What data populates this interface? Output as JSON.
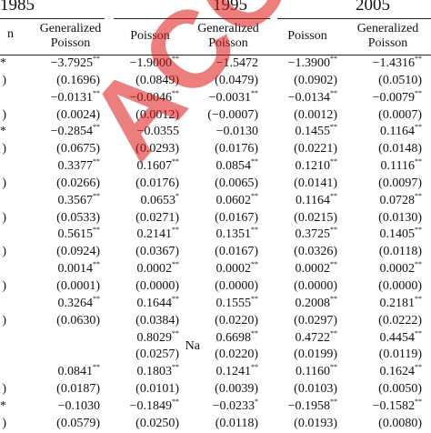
{
  "years": [
    "1985",
    "1995",
    "2005"
  ],
  "column_headers": [
    {
      "line1": "n",
      "line2": ""
    },
    {
      "line1": "Generalized",
      "line2": "Poisson"
    },
    {
      "line1": "Poisson",
      "line2": ""
    },
    {
      "line1": "Generalized",
      "line2": "Poisson"
    },
    {
      "line1": "Poisson",
      "line2": ""
    },
    {
      "line1": "Generalized",
      "line2": "Poisson"
    }
  ],
  "rows": [
    {
      "c0": "**",
      "c1": "−3.7925",
      "c1s": "**",
      "c2": "−1.9000",
      "c2s": "**",
      "c3": "−1.5472",
      "c3s": "",
      "c4": "−1.3900",
      "c4s": "**",
      "c5": "−1.4316",
      "c5s": "**"
    },
    {
      "c0": ")",
      "c1": "(0.1696)",
      "c1s": "",
      "c2": "(0.0849)",
      "c2s": "",
      "c3": "(0.0479)",
      "c3s": "",
      "c4": "(0.0902)",
      "c4s": "",
      "c5": "(0.0510)",
      "c5s": ""
    },
    {
      "c0": "",
      "c1": "−0.0131",
      "c1s": "**",
      "c2": "−0.0046",
      "c2s": "**",
      "c3": "−0.0031",
      "c3s": "**",
      "c4": "−0.0134",
      "c4s": "**",
      "c5": "−0.0079",
      "c5s": "**"
    },
    {
      "c0": ")",
      "c1": "(0.0024)",
      "c1s": "",
      "c2": "(0.0012)",
      "c2s": "",
      "c3": "(−0.0007)",
      "c3s": "",
      "c4": "(0.0012)",
      "c4s": "",
      "c5": "(0.0007)",
      "c5s": ""
    },
    {
      "c0": "*",
      "c1": "−0.2854",
      "c1s": "**",
      "c2": "−0.0355",
      "c2s": "",
      "c3": "−0.0130",
      "c3s": "",
      "c4": "0.1455",
      "c4s": "**",
      "c5": "0.1164",
      "c5s": "**"
    },
    {
      "c0": ")",
      "c1": "(0.0675)",
      "c1s": "",
      "c2": "(0.0293)",
      "c2s": "",
      "c3": "(0.0176)",
      "c3s": "",
      "c4": "(0.0221)",
      "c4s": "",
      "c5": "(0.0148)",
      "c5s": ""
    },
    {
      "c0": "",
      "c1": "0.3377",
      "c1s": "**",
      "c2": "0.1607",
      "c2s": "**",
      "c3": "0.0854",
      "c3s": "**",
      "c4": "0.1210",
      "c4s": "**",
      "c5": "0.1116",
      "c5s": "**"
    },
    {
      "c0": ")",
      "c1": "(0.0266)",
      "c1s": "",
      "c2": "(0.0176)",
      "c2s": "",
      "c3": "(0.0065)",
      "c3s": "",
      "c4": "(0.0141)",
      "c4s": "",
      "c5": "(0.0097)",
      "c5s": ""
    },
    {
      "c0": "",
      "c1": "0.3567",
      "c1s": "**",
      "c2": "0.0653",
      "c2s": "*",
      "c3": "0.0602",
      "c3s": "**",
      "c4": "0.1164",
      "c4s": "**",
      "c5": "0.0728",
      "c5s": "**"
    },
    {
      "c0": ")",
      "c1": "(0.0533)",
      "c1s": "",
      "c2": "(0.0271)",
      "c2s": "",
      "c3": "(0.0167)",
      "c3s": "",
      "c4": "(0.0215)",
      "c4s": "",
      "c5": "(0.0130)",
      "c5s": ""
    },
    {
      "c0": "",
      "c1": "0.5615",
      "c1s": "**",
      "c2": "0.2141",
      "c2s": "**",
      "c3": "0.1351",
      "c3s": "**",
      "c4": "0.3725",
      "c4s": "**",
      "c5": "0.1405",
      "c5s": "**"
    },
    {
      "c0": ")",
      "c1": "(0.0924)",
      "c1s": "",
      "c2": "(0.0367)",
      "c2s": "",
      "c3": "(0.0167)",
      "c3s": "",
      "c4": "(0.0326)",
      "c4s": "",
      "c5": "(0.0118)",
      "c5s": ""
    },
    {
      "c0": "",
      "c1": "0.0014",
      "c1s": "**",
      "c2": "0.0002",
      "c2s": "**",
      "c3": "0.0002",
      "c3s": "**",
      "c4": "0.0002",
      "c4s": "**",
      "c5": "0.0002",
      "c5s": "**"
    },
    {
      "c0": ")",
      "c1": "(0.0001)",
      "c1s": "",
      "c2": "(0.0000)",
      "c2s": "",
      "c3": "(0.0000)",
      "c3s": "",
      "c4": "(0.0000)",
      "c4s": "",
      "c5": "(0.0000)",
      "c5s": ""
    },
    {
      "c0": "",
      "c1": "0.3264",
      "c1s": "**",
      "c2": "0.1644",
      "c2s": "**",
      "c3": "0.1555",
      "c3s": "**",
      "c4": "0.2008",
      "c4s": "**",
      "c5": "0.2181",
      "c5s": "**"
    },
    {
      "c0": ")",
      "c1": "(0.0630)",
      "c1s": "",
      "c2": "(0.0384)",
      "c2s": "",
      "c3": "(0.0220)",
      "c3s": "",
      "c4": "(0.0297)",
      "c4s": "",
      "c5": "(0.0222)",
      "c5s": ""
    },
    {
      "c0": "",
      "c1": "",
      "c1s": "",
      "c2": "0.8029",
      "c2s": "**",
      "c3": "0.6698",
      "c3s": "**",
      "c4": "0.4722",
      "c4s": "**",
      "c5": "0.4454",
      "c5s": "**",
      "na": "Na"
    },
    {
      "c0": "",
      "c1": "",
      "c1s": "",
      "c2": "(0.0257)",
      "c2s": "",
      "c3": "(0.0220)",
      "c3s": "",
      "c4": "(0.0199)",
      "c4s": "",
      "c5": "(0.0119)",
      "c5s": ""
    },
    {
      "c0": "",
      "c1": "0.0841",
      "c1s": "**",
      "c2": "0.1803",
      "c2s": "**",
      "c3": "0.1241",
      "c3s": "**",
      "c4": "0.1160",
      "c4s": "**",
      "c5": "0.1624",
      "c5s": "**"
    },
    {
      "c0": ")",
      "c1": "(0.0187)",
      "c1s": "",
      "c2": "(0.0101)",
      "c2s": "",
      "c3": "(0.0039)",
      "c3s": "",
      "c4": "(0.0103)",
      "c4s": "",
      "c5": "(0.0050)",
      "c5s": ""
    },
    {
      "c0": "*",
      "c1": "−0.1030",
      "c1s": "",
      "c2": "−0.1849",
      "c2s": "**",
      "c3": "−0.0233",
      "c3s": "*",
      "c4": "−0.1958",
      "c4s": "**",
      "c5": "−0.1582",
      "c5s": "**"
    },
    {
      "c0": ")",
      "c1": "(0.0579)",
      "c1s": "",
      "c2": "(0.0250)",
      "c2s": "",
      "c3": "(0.0118)",
      "c3s": "",
      "c4": "(0.0193)",
      "c4s": "",
      "c5": "(0.0080)",
      "c5s": ""
    }
  ],
  "watermark": "ACCEPTED PRO"
}
